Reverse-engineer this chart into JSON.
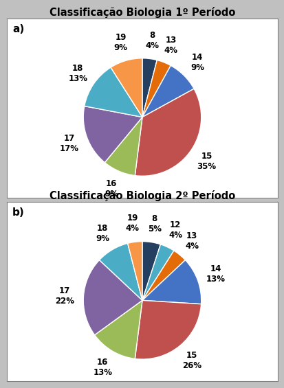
{
  "chart_a": {
    "title": "Classificação Biologia 1º Período",
    "labels": [
      "8",
      "13",
      "14",
      "15",
      "16",
      "17",
      "18",
      "19"
    ],
    "pct_labels": [
      "4%",
      "4%",
      "9%",
      "35%",
      "9%",
      "17%",
      "13%",
      "9%"
    ],
    "percentages": [
      4,
      4,
      9,
      35,
      9,
      17,
      13,
      9
    ],
    "colors": [
      "#243F60",
      "#E36C09",
      "#4472C4",
      "#C0504D",
      "#9BBB59",
      "#8064A2",
      "#4BACC6",
      "#F79646"
    ],
    "startangle": 90,
    "label_r": 1.32
  },
  "chart_b": {
    "title": "Classificação Biologia 2º Período",
    "labels": [
      "8",
      "12",
      "13",
      "14",
      "15",
      "16",
      "17",
      "18",
      "19"
    ],
    "pct_labels": [
      "5%",
      "4%",
      "4%",
      "13%",
      "26%",
      "13%",
      "22%",
      "9%",
      "4%"
    ],
    "percentages": [
      5,
      4,
      4,
      13,
      26,
      13,
      22,
      9,
      4
    ],
    "colors": [
      "#243F60",
      "#4BACC6",
      "#E36C09",
      "#4472C4",
      "#C0504D",
      "#9BBB59",
      "#8064A2",
      "#4BACC6",
      "#F79646"
    ],
    "startangle": 90,
    "label_r": 1.32
  },
  "bg_color": "#C0C0C0",
  "panel_bg": "#FFFFFF",
  "border_color": "#808080",
  "title_fontsize": 10.5,
  "label_fontsize": 8.5,
  "panel_a_label": "a)",
  "panel_b_label": "b)"
}
